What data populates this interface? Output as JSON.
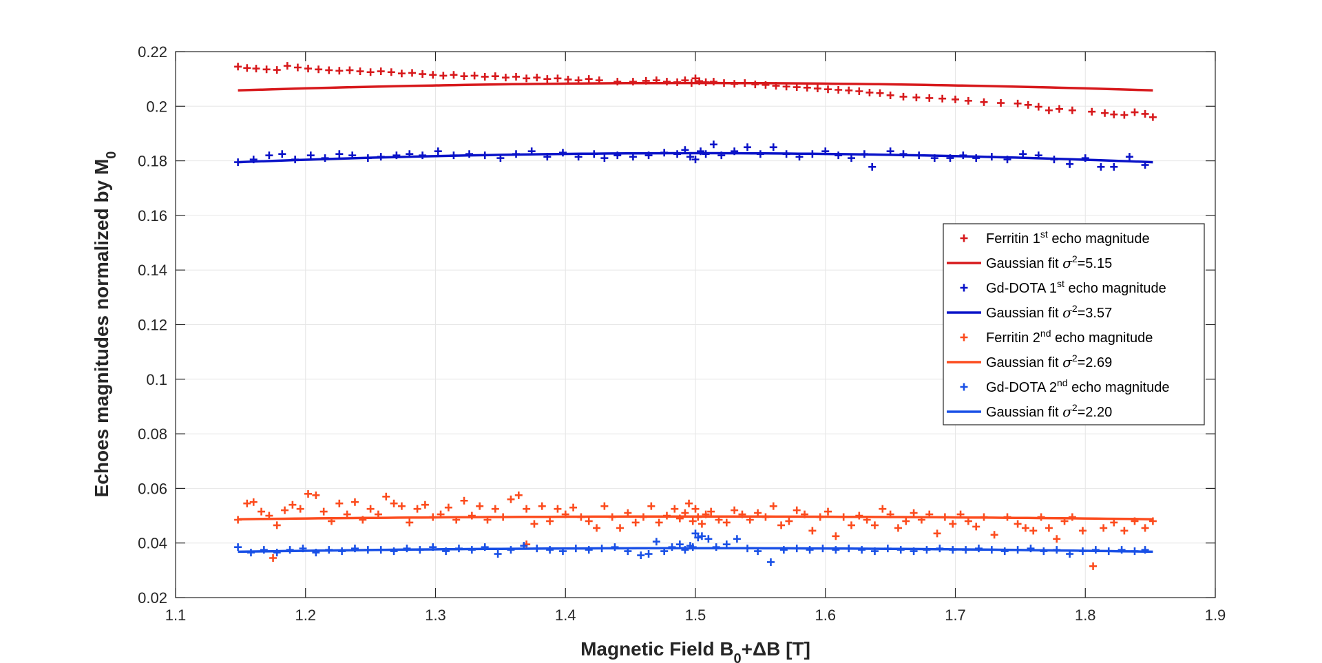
{
  "chart_data": {
    "type": "scatter",
    "title": "",
    "xlabel": "Magnetic Field B",
    "xlabel_sub": "0",
    "xlabel_tail": "+ΔB [T]",
    "ylabel": "Echoes magnitudes normalized by M",
    "ylabel_sub": "0",
    "xlim": [
      1.1,
      1.9
    ],
    "ylim": [
      0.02,
      0.22
    ],
    "xticks": [
      1.1,
      1.2,
      1.3,
      1.4,
      1.5,
      1.6,
      1.7,
      1.8,
      1.9
    ],
    "yticks": [
      0.02,
      0.04,
      0.06,
      0.08,
      0.1,
      0.12,
      0.14,
      0.16,
      0.18,
      0.2,
      0.22
    ],
    "xtick_labels": [
      "1.1",
      "1.2",
      "1.3",
      "1.4",
      "1.5",
      "1.6",
      "1.7",
      "1.8",
      "1.9"
    ],
    "ytick_labels": [
      "0.02",
      "0.04",
      "0.06",
      "0.08",
      "0.1",
      "0.12",
      "0.14",
      "0.16",
      "0.18",
      "0.2",
      "0.22"
    ],
    "grid": true,
    "legend_position": "right, middle",
    "series": [
      {
        "name": "Ferritin 1st echo magnitude",
        "legend": {
          "pre": "Ferritin 1",
          "sup": "st",
          "post": " echo magnitude"
        },
        "kind": "markers",
        "color": "#d7191c",
        "x": [
          1.148,
          1.155,
          1.162,
          1.17,
          1.178,
          1.186,
          1.194,
          1.202,
          1.21,
          1.218,
          1.226,
          1.234,
          1.242,
          1.25,
          1.258,
          1.266,
          1.274,
          1.282,
          1.29,
          1.298,
          1.306,
          1.314,
          1.322,
          1.33,
          1.338,
          1.346,
          1.354,
          1.362,
          1.37,
          1.378,
          1.386,
          1.394,
          1.402,
          1.41,
          1.418,
          1.426,
          1.44,
          1.452,
          1.462,
          1.47,
          1.478,
          1.486,
          1.492,
          1.497,
          1.5,
          1.503,
          1.508,
          1.514,
          1.522,
          1.53,
          1.538,
          1.546,
          1.554,
          1.562,
          1.57,
          1.578,
          1.586,
          1.594,
          1.602,
          1.61,
          1.618,
          1.626,
          1.634,
          1.642,
          1.65,
          1.66,
          1.67,
          1.68,
          1.69,
          1.7,
          1.71,
          1.722,
          1.735,
          1.748,
          1.756,
          1.764,
          1.772,
          1.78,
          1.79,
          1.805,
          1.815,
          1.822,
          1.83,
          1.838,
          1.846,
          1.852
        ],
        "y": [
          0.2145,
          0.214,
          0.2138,
          0.2135,
          0.2133,
          0.2148,
          0.2142,
          0.2138,
          0.2135,
          0.2132,
          0.213,
          0.2132,
          0.2128,
          0.2125,
          0.2128,
          0.2125,
          0.212,
          0.2122,
          0.2118,
          0.2115,
          0.2112,
          0.2115,
          0.211,
          0.2112,
          0.2108,
          0.211,
          0.2105,
          0.2108,
          0.2102,
          0.2105,
          0.21,
          0.2102,
          0.2098,
          0.2095,
          0.21,
          0.2095,
          0.209,
          0.209,
          0.2093,
          0.2095,
          0.209,
          0.2088,
          0.2095,
          0.2085,
          0.2102,
          0.2092,
          0.2088,
          0.209,
          0.2085,
          0.2082,
          0.2085,
          0.208,
          0.2078,
          0.2075,
          0.2072,
          0.207,
          0.2068,
          0.2065,
          0.2062,
          0.206,
          0.2058,
          0.2055,
          0.205,
          0.2048,
          0.204,
          0.2035,
          0.2032,
          0.203,
          0.2028,
          0.2025,
          0.202,
          0.2015,
          0.2012,
          0.201,
          0.2005,
          0.1998,
          0.1985,
          0.199,
          0.1985,
          0.198,
          0.1975,
          0.197,
          0.1968,
          0.1978,
          0.1972,
          0.196
        ]
      },
      {
        "name": "Gaussian fit σ²=5.15",
        "legend": {
          "pre": "Gaussian fit ",
          "sigma": "σ",
          "sup": "2",
          "post": "=5.15"
        },
        "kind": "fit",
        "color": "#d7191c",
        "x_range": [
          1.148,
          1.852
        ],
        "peak_x": 1.5,
        "peak_y": 0.2085,
        "end_y": 0.2058
      },
      {
        "name": "Gd-DOTA 1st echo magnitude",
        "legend": {
          "pre": "Gd-DOTA 1",
          "sup": "st",
          "post": " echo magnitude"
        },
        "kind": "markers",
        "color": "#0a13c8",
        "x": [
          1.148,
          1.16,
          1.172,
          1.182,
          1.192,
          1.204,
          1.215,
          1.226,
          1.236,
          1.248,
          1.258,
          1.27,
          1.28,
          1.29,
          1.302,
          1.314,
          1.326,
          1.338,
          1.35,
          1.362,
          1.374,
          1.386,
          1.398,
          1.41,
          1.422,
          1.43,
          1.44,
          1.452,
          1.464,
          1.476,
          1.486,
          1.492,
          1.496,
          1.5,
          1.504,
          1.508,
          1.514,
          1.52,
          1.53,
          1.54,
          1.55,
          1.56,
          1.57,
          1.58,
          1.59,
          1.6,
          1.61,
          1.62,
          1.63,
          1.636,
          1.65,
          1.66,
          1.672,
          1.684,
          1.696,
          1.706,
          1.716,
          1.728,
          1.74,
          1.752,
          1.764,
          1.776,
          1.788,
          1.8,
          1.812,
          1.822,
          1.834,
          1.846
        ],
        "y": [
          0.1795,
          0.1805,
          0.182,
          0.1825,
          0.1805,
          0.182,
          0.181,
          0.1825,
          0.182,
          0.181,
          0.1815,
          0.182,
          0.1825,
          0.182,
          0.1835,
          0.182,
          0.1825,
          0.182,
          0.181,
          0.1825,
          0.1835,
          0.1815,
          0.183,
          0.1815,
          0.1825,
          0.181,
          0.182,
          0.1815,
          0.182,
          0.183,
          0.1825,
          0.184,
          0.1815,
          0.1805,
          0.1835,
          0.1825,
          0.186,
          0.182,
          0.1835,
          0.185,
          0.1825,
          0.185,
          0.1825,
          0.1815,
          0.1825,
          0.1835,
          0.182,
          0.181,
          0.1825,
          0.1778,
          0.1835,
          0.1825,
          0.182,
          0.181,
          0.181,
          0.182,
          0.181,
          0.1815,
          0.1805,
          0.1825,
          0.182,
          0.1805,
          0.1788,
          0.181,
          0.1778,
          0.1778,
          0.1815,
          0.1785
        ]
      },
      {
        "name": "Gaussian fit σ²=3.57",
        "legend": {
          "pre": "Gaussian fit ",
          "sigma": "σ",
          "sup": "2",
          "post": "=3.57"
        },
        "kind": "fit",
        "color": "#0a13c8",
        "x_range": [
          1.148,
          1.852
        ],
        "peak_x": 1.5,
        "peak_y": 0.1828,
        "end_y": 0.1795
      },
      {
        "name": "Ferritin 2nd echo magnitude",
        "legend": {
          "pre": "Ferritin 2",
          "sup": "nd",
          "post": " echo magnitude"
        },
        "kind": "markers",
        "color": "#fc4c1e",
        "x": [
          1.148,
          1.155,
          1.16,
          1.166,
          1.172,
          1.178,
          1.184,
          1.19,
          1.196,
          1.202,
          1.208,
          1.214,
          1.22,
          1.226,
          1.232,
          1.238,
          1.244,
          1.25,
          1.256,
          1.262,
          1.268,
          1.274,
          1.28,
          1.286,
          1.292,
          1.298,
          1.304,
          1.31,
          1.316,
          1.322,
          1.328,
          1.334,
          1.34,
          1.346,
          1.352,
          1.358,
          1.364,
          1.37,
          1.376,
          1.382,
          1.388,
          1.394,
          1.4,
          1.406,
          1.412,
          1.418,
          1.424,
          1.43,
          1.436,
          1.442,
          1.448,
          1.454,
          1.46,
          1.466,
          1.472,
          1.478,
          1.484,
          1.488,
          1.492,
          1.495,
          1.498,
          1.5,
          1.502,
          1.505,
          1.508,
          1.512,
          1.518,
          1.524,
          1.53,
          1.536,
          1.542,
          1.548,
          1.554,
          1.56,
          1.566,
          1.572,
          1.578,
          1.584,
          1.59,
          1.596,
          1.602,
          1.608,
          1.614,
          1.62,
          1.626,
          1.632,
          1.638,
          1.644,
          1.65,
          1.656,
          1.662,
          1.668,
          1.674,
          1.68,
          1.686,
          1.692,
          1.698,
          1.704,
          1.71,
          1.716,
          1.722,
          1.73,
          1.74,
          1.748,
          1.754,
          1.76,
          1.766,
          1.772,
          1.778,
          1.784,
          1.79,
          1.798,
          1.806,
          1.814,
          1.822,
          1.83,
          1.838,
          1.846,
          1.852,
          1.175,
          1.37
        ],
        "y": [
          0.0485,
          0.0545,
          0.055,
          0.0515,
          0.05,
          0.0465,
          0.052,
          0.054,
          0.0525,
          0.058,
          0.0575,
          0.0515,
          0.048,
          0.0545,
          0.0505,
          0.055,
          0.0485,
          0.0525,
          0.0505,
          0.057,
          0.0545,
          0.0535,
          0.0475,
          0.0525,
          0.054,
          0.0495,
          0.0505,
          0.053,
          0.0485,
          0.0555,
          0.05,
          0.0535,
          0.0485,
          0.0525,
          0.0495,
          0.056,
          0.0575,
          0.0525,
          0.047,
          0.0535,
          0.048,
          0.0525,
          0.0505,
          0.053,
          0.0495,
          0.048,
          0.0455,
          0.0535,
          0.0495,
          0.0455,
          0.051,
          0.0475,
          0.0495,
          0.0535,
          0.0475,
          0.05,
          0.0525,
          0.049,
          0.051,
          0.0545,
          0.048,
          0.0525,
          0.0495,
          0.047,
          0.0505,
          0.0515,
          0.0485,
          0.0475,
          0.052,
          0.0505,
          0.0485,
          0.051,
          0.0495,
          0.0535,
          0.0465,
          0.048,
          0.052,
          0.0505,
          0.0445,
          0.0495,
          0.0515,
          0.0425,
          0.0495,
          0.0465,
          0.05,
          0.0485,
          0.0465,
          0.0525,
          0.0505,
          0.0455,
          0.048,
          0.051,
          0.0485,
          0.0505,
          0.0435,
          0.0495,
          0.047,
          0.0505,
          0.048,
          0.046,
          0.0495,
          0.043,
          0.0495,
          0.047,
          0.0455,
          0.0445,
          0.0495,
          0.0455,
          0.0415,
          0.048,
          0.0495,
          0.0445,
          0.0315,
          0.0455,
          0.0475,
          0.0445,
          0.048,
          0.0455,
          0.048,
          0.0345,
          0.0395
        ]
      },
      {
        "name": "Gaussian fit σ²=2.69",
        "legend": {
          "pre": "Gaussian fit ",
          "sigma": "σ",
          "sup": "2",
          "post": "=2.69"
        },
        "kind": "fit",
        "color": "#fc4c1e",
        "x_range": [
          1.148,
          1.852
        ],
        "peak_x": 1.5,
        "peak_y": 0.0497,
        "end_y": 0.0487
      },
      {
        "name": "Gd-DOTA 2nd echo magnitude",
        "legend": {
          "pre": "Gd-DOTA 2",
          "sup": "nd",
          "post": " echo magnitude"
        },
        "kind": "markers",
        "color": "#1950e6",
        "x": [
          1.148,
          1.158,
          1.168,
          1.178,
          1.188,
          1.198,
          1.208,
          1.218,
          1.228,
          1.238,
          1.248,
          1.258,
          1.268,
          1.278,
          1.288,
          1.298,
          1.308,
          1.318,
          1.328,
          1.338,
          1.348,
          1.358,
          1.368,
          1.378,
          1.388,
          1.398,
          1.408,
          1.418,
          1.428,
          1.438,
          1.448,
          1.458,
          1.464,
          1.47,
          1.476,
          1.482,
          1.488,
          1.492,
          1.496,
          1.498,
          1.5,
          1.502,
          1.505,
          1.51,
          1.516,
          1.524,
          1.532,
          1.54,
          1.548,
          1.558,
          1.568,
          1.578,
          1.588,
          1.598,
          1.608,
          1.618,
          1.628,
          1.638,
          1.648,
          1.658,
          1.668,
          1.678,
          1.688,
          1.698,
          1.708,
          1.718,
          1.728,
          1.738,
          1.748,
          1.758,
          1.768,
          1.778,
          1.788,
          1.798,
          1.808,
          1.818,
          1.828,
          1.838,
          1.846
        ],
        "y": [
          0.0385,
          0.0365,
          0.0375,
          0.0365,
          0.0375,
          0.038,
          0.0365,
          0.0375,
          0.037,
          0.038,
          0.0375,
          0.0375,
          0.037,
          0.038,
          0.0375,
          0.0385,
          0.037,
          0.038,
          0.0375,
          0.0385,
          0.036,
          0.0375,
          0.039,
          0.038,
          0.0375,
          0.037,
          0.038,
          0.0375,
          0.038,
          0.0385,
          0.037,
          0.0355,
          0.036,
          0.0405,
          0.037,
          0.0385,
          0.0395,
          0.0375,
          0.039,
          0.0385,
          0.0435,
          0.042,
          0.0425,
          0.0415,
          0.0385,
          0.0395,
          0.0415,
          0.038,
          0.037,
          0.033,
          0.0375,
          0.038,
          0.0375,
          0.038,
          0.0375,
          0.038,
          0.0375,
          0.037,
          0.038,
          0.0375,
          0.037,
          0.0375,
          0.038,
          0.0375,
          0.0375,
          0.038,
          0.0375,
          0.037,
          0.0375,
          0.038,
          0.037,
          0.0375,
          0.036,
          0.037,
          0.0375,
          0.037,
          0.0375,
          0.037,
          0.0375
        ]
      },
      {
        "name": "Gaussian fit σ²=2.20",
        "legend": {
          "pre": "Gaussian fit ",
          "sigma": "σ",
          "sup": "2",
          "post": "=2.20"
        },
        "kind": "fit",
        "color": "#1950e6",
        "x_range": [
          1.148,
          1.852
        ],
        "peak_x": 1.5,
        "peak_y": 0.0381,
        "end_y": 0.0368
      }
    ]
  }
}
